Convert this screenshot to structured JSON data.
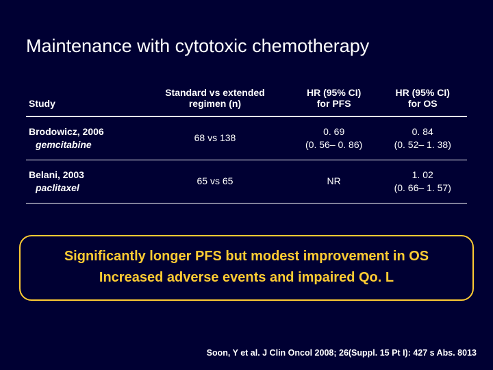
{
  "title": "Maintenance with cytotoxic chemotherapy",
  "table": {
    "headers": {
      "study": "Study",
      "regimen": "Standard vs extended\nregimen (n)",
      "pfs": "HR (95% CI)\nfor PFS",
      "os": "HR (95% CI)\nfor OS"
    },
    "rows": [
      {
        "study_name": "Brodowicz, 2006",
        "study_drug": "gemcitabine",
        "regimen": "68 vs 138",
        "pfs": "0. 69\n(0. 56– 0. 86)",
        "os": "0. 84\n(0. 52– 1. 38)"
      },
      {
        "study_name": "Belani, 2003",
        "study_drug": "paclitaxel",
        "regimen": "65 vs 65",
        "pfs": "NR",
        "os": "1. 02\n(0. 66– 1. 57)"
      }
    ]
  },
  "callout": {
    "line1": "Significantly longer PFS but modest improvement in OS",
    "line2": "Increased adverse events and impaired Qo. L"
  },
  "citation": "Soon, Y et al. J Clin Oncol 2008; 26(Suppl. 15 Pt I): 427 s Abs. 8013",
  "colors": {
    "background": "#000033",
    "text": "#ffffff",
    "accent": "#ffcc33"
  }
}
